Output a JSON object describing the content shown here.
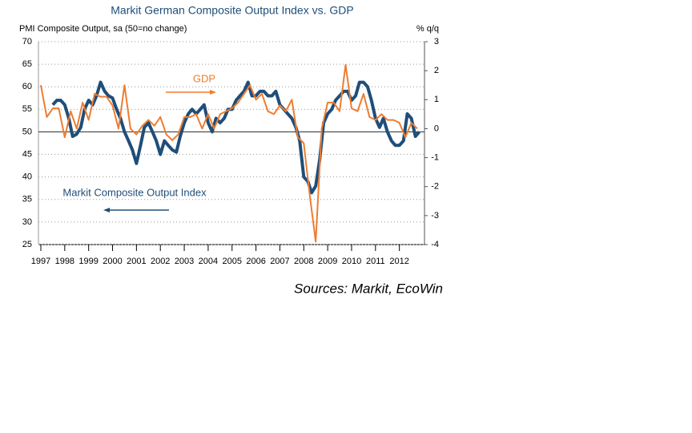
{
  "chart_data": {
    "type": "line",
    "title": "Markit German Composite Output Index vs. GDP",
    "ylabel": "PMI Composite Output, sa (50=no change)",
    "y2label": "% q/q",
    "source": "Sources: Markit, EcoWin",
    "xlim": [
      1997.4,
      2013.55
    ],
    "xticks": [
      {
        "value": 1997.5,
        "label": "1997"
      },
      {
        "value": 1998.5,
        "label": "1998"
      },
      {
        "value": 1999.5,
        "label": "1999"
      },
      {
        "value": 2000.5,
        "label": "2000"
      },
      {
        "value": 2001.5,
        "label": "2001"
      },
      {
        "value": 2002.5,
        "label": "2002"
      },
      {
        "value": 2003.5,
        "label": "2003"
      },
      {
        "value": 2004.5,
        "label": "2004"
      },
      {
        "value": 2005.5,
        "label": "2005"
      },
      {
        "value": 2006.5,
        "label": "2006"
      },
      {
        "value": 2007.5,
        "label": "2007"
      },
      {
        "value": 2008.5,
        "label": "2008"
      },
      {
        "value": 2009.5,
        "label": "2009"
      },
      {
        "value": 2010.5,
        "label": "2010"
      },
      {
        "value": 2011.5,
        "label": "2011"
      },
      {
        "value": 2012.5,
        "label": "2012"
      }
    ],
    "ylim": [
      25,
      70
    ],
    "yticks": [
      25,
      30,
      35,
      40,
      45,
      50,
      55,
      60,
      65,
      70
    ],
    "y2lim": [
      -4,
      3
    ],
    "y2ticks": [
      -4,
      -3,
      -2,
      -1,
      0,
      1,
      2,
      3
    ],
    "ref_line": 50,
    "grid": true,
    "series": [
      {
        "name": "Markit Composite Output Index",
        "color": "#1f4e79",
        "x": [
          1998.0,
          1998.17,
          1998.33,
          1998.5,
          1998.67,
          1998.83,
          1999.0,
          1999.17,
          1999.33,
          1999.5,
          1999.67,
          1999.83,
          2000.0,
          2000.17,
          2000.33,
          2000.5,
          2000.67,
          2000.83,
          2001.0,
          2001.17,
          2001.33,
          2001.5,
          2001.67,
          2001.83,
          2002.0,
          2002.17,
          2002.33,
          2002.5,
          2002.67,
          2002.83,
          2003.0,
          2003.17,
          2003.33,
          2003.5,
          2003.67,
          2003.83,
          2004.0,
          2004.17,
          2004.33,
          2004.5,
          2004.67,
          2004.83,
          2005.0,
          2005.17,
          2005.33,
          2005.5,
          2005.67,
          2005.83,
          2006.0,
          2006.17,
          2006.33,
          2006.5,
          2006.67,
          2006.83,
          2007.0,
          2007.17,
          2007.33,
          2007.5,
          2007.67,
          2007.83,
          2008.0,
          2008.17,
          2008.33,
          2008.5,
          2008.67,
          2008.83,
          2009.0,
          2009.17,
          2009.33,
          2009.5,
          2009.67,
          2009.83,
          2010.0,
          2010.17,
          2010.33,
          2010.5,
          2010.67,
          2010.83,
          2011.0,
          2011.17,
          2011.33,
          2011.5,
          2011.67,
          2011.83,
          2012.0,
          2012.17,
          2012.33,
          2012.5,
          2012.67,
          2012.83,
          2013.0,
          2013.17,
          2013.33
        ],
        "values": [
          56,
          57,
          57,
          56,
          53,
          49,
          49.5,
          51,
          55,
          57,
          56,
          58,
          61,
          59,
          58,
          57.5,
          55,
          53,
          50,
          48,
          46,
          43,
          47,
          51,
          52,
          50,
          48,
          45,
          48,
          47,
          46,
          45.5,
          49,
          52,
          54,
          55,
          54,
          55,
          56,
          52,
          50,
          53,
          52,
          53,
          55,
          55,
          57,
          58,
          59,
          61,
          58,
          58,
          59,
          59,
          58,
          58,
          59,
          56,
          55,
          54,
          53,
          51,
          48,
          40,
          39,
          36.5,
          38,
          44,
          52,
          54,
          55,
          57,
          58,
          59,
          59,
          57,
          58,
          61,
          61,
          60,
          57,
          53,
          51,
          53,
          50,
          48,
          47,
          47,
          48,
          54,
          53,
          49,
          50
        ]
      },
      {
        "name": "GDP",
        "color": "#ed7d31",
        "axis": "y2",
        "x": [
          1997.5,
          1997.75,
          1998.0,
          1998.25,
          1998.5,
          1998.75,
          1999.0,
          1999.25,
          1999.5,
          1999.75,
          2000.0,
          2000.25,
          2000.5,
          2000.75,
          2001.0,
          2001.25,
          2001.5,
          2001.75,
          2002.0,
          2002.25,
          2002.5,
          2002.75,
          2003.0,
          2003.25,
          2003.5,
          2003.75,
          2004.0,
          2004.25,
          2004.5,
          2004.75,
          2005.0,
          2005.25,
          2005.5,
          2005.75,
          2006.0,
          2006.25,
          2006.5,
          2006.75,
          2007.0,
          2007.25,
          2007.5,
          2007.75,
          2008.0,
          2008.25,
          2008.5,
          2008.75,
          2009.0,
          2009.25,
          2009.5,
          2009.75,
          2010.0,
          2010.25,
          2010.5,
          2010.75,
          2011.0,
          2011.25,
          2011.5,
          2011.75,
          2012.0,
          2012.25,
          2012.5,
          2012.75,
          2013.0,
          2013.25
        ],
        "values": [
          1.5,
          0.4,
          0.7,
          0.7,
          -0.3,
          0.6,
          0.0,
          0.9,
          0.3,
          1.2,
          1.1,
          1.1,
          0.8,
          0.0,
          1.5,
          0.0,
          -0.2,
          0.1,
          0.3,
          0.1,
          0.4,
          -0.2,
          -0.4,
          -0.2,
          0.4,
          0.4,
          0.5,
          0.0,
          0.5,
          0.0,
          0.5,
          0.6,
          0.7,
          0.9,
          1.2,
          1.5,
          1.0,
          1.2,
          0.6,
          0.5,
          0.8,
          0.6,
          1.0,
          -0.3,
          -0.5,
          -2.3,
          -3.9,
          0.0,
          0.9,
          0.9,
          0.6,
          2.2,
          0.7,
          0.6,
          1.2,
          0.4,
          0.3,
          0.5,
          0.3,
          0.3,
          0.2,
          -0.3,
          0.2,
          0.0
        ]
      }
    ]
  }
}
